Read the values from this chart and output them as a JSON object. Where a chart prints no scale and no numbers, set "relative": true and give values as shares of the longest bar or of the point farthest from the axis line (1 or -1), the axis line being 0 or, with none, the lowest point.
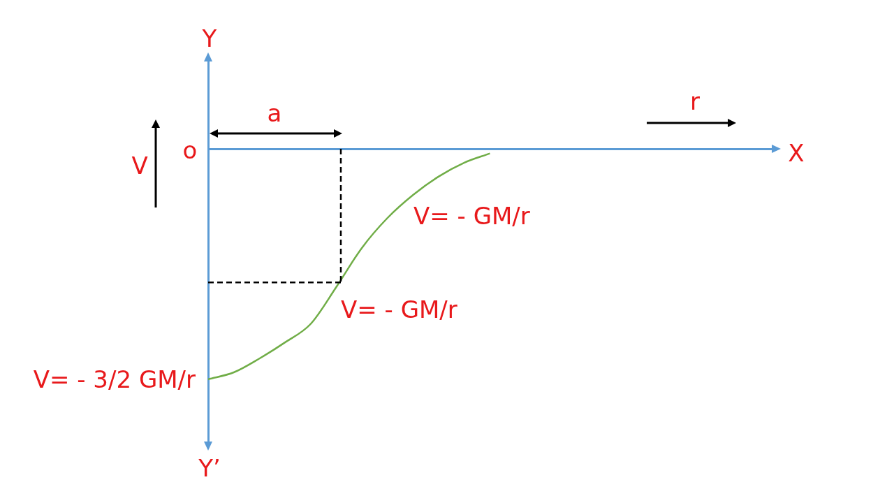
{
  "chart_data": {
    "type": "line",
    "relative": true,
    "ylabel": "V",
    "categories": [
      null,
      null,
      null,
      null,
      null,
      null,
      null,
      null,
      null,
      null,
      null,
      null,
      null,
      null,
      null,
      null,
      null,
      null,
      null,
      null,
      null,
      null,
      null
    ],
    "series": [
      {
        "color": "#70ad47",
        "values": [
          -1.0,
          -0.97,
          -0.91,
          -0.84,
          -0.76,
          -0.6,
          -0.43,
          -0.3,
          -0.2,
          -0.12,
          -0.06,
          -0.02,
          null,
          null,
          null,
          null,
          null,
          null,
          null,
          null,
          null,
          null,
          null
        ]
      }
    ],
    "ref_lines": [
      {
        "axis": "y",
        "value": -0.58,
        "color": "#000000",
        "line_style": "dashed"
      }
    ],
    "annotations": [
      "Y",
      "Y’",
      "X",
      "o",
      "a",
      "r",
      "V= - 3/2 GM/r",
      "V= - GM/r",
      "V= - GM/r"
    ],
    "line_style": "solid"
  }
}
